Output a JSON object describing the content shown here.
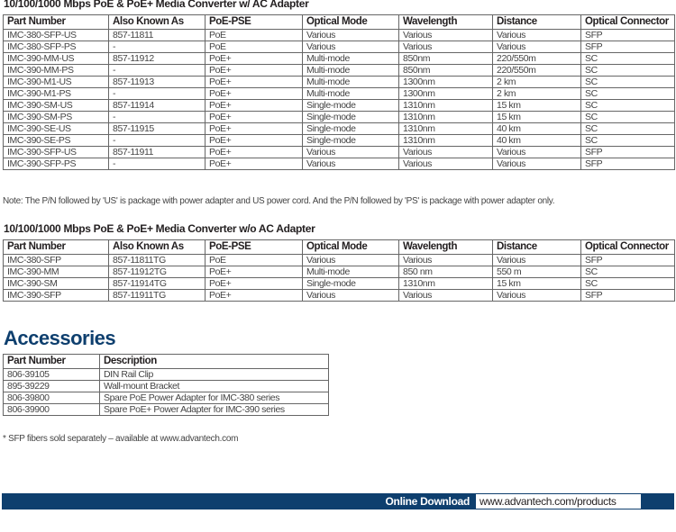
{
  "section1": {
    "title": "10/100/1000 Mbps PoE & PoE+ Media Converter w/ AC Adapter",
    "headers": [
      "Part Number",
      "Also Known As",
      "PoE-PSE",
      "Optical Mode",
      "Wavelength",
      "Distance",
      "Optical Connector"
    ],
    "rows": [
      [
        "IMC-380-SFP-US",
        "857-11811",
        "PoE",
        "Various",
        "Various",
        "Various",
        "SFP"
      ],
      [
        "IMC-380-SFP-PS",
        "-",
        "PoE",
        "Various",
        "Various",
        "Various",
        "SFP"
      ],
      [
        "IMC-390-MM-US",
        "857-11912",
        "PoE+",
        "Multi-mode",
        "850nm",
        "220/550m",
        "SC"
      ],
      [
        "IMC-390-MM-PS",
        "-",
        "PoE+",
        "Multi-mode",
        "850nm",
        "220/550m",
        "SC"
      ],
      [
        "IMC-390-M1-US",
        "857-11913",
        "PoE+",
        "Multi-mode",
        "1300nm",
        "2 km",
        "SC"
      ],
      [
        "IMC-390-M1-PS",
        "-",
        "PoE+",
        "Multi-mode",
        "1300nm",
        "2 km",
        "SC"
      ],
      [
        "IMC-390-SM-US",
        "857-11914",
        "PoE+",
        "Single-mode",
        "1310nm",
        "15 km",
        "SC"
      ],
      [
        "IMC-390-SM-PS",
        "-",
        "PoE+",
        "Single-mode",
        "1310nm",
        "15 km",
        "SC"
      ],
      [
        "IMC-390-SE-US",
        "857-11915",
        "PoE+",
        "Single-mode",
        "1310nm",
        "40 km",
        "SC"
      ],
      [
        "IMC-390-SE-PS",
        "-",
        "PoE+",
        "Single-mode",
        "1310nm",
        "40 km",
        "SC"
      ],
      [
        "IMC-390-SFP-US",
        "857-11911",
        "PoE+",
        "Various",
        "Various",
        "Various",
        "SFP"
      ],
      [
        "IMC-390-SFP-PS",
        "-",
        "PoE+",
        "Various",
        "Various",
        "Various",
        "SFP"
      ]
    ],
    "note": "Note: The P/N followed by 'US' is package with power adapter and US power cord. And the P/N followed by 'PS' is package with  power adapter only."
  },
  "section2": {
    "title": "10/100/1000 Mbps PoE & PoE+ Media Converter w/o AC Adapter",
    "headers": [
      "Part Number",
      "Also Known As",
      "PoE-PSE",
      "Optical Mode",
      "Wavelength",
      "Distance",
      "Optical Connector"
    ],
    "rows": [
      [
        "IMC-380-SFP",
        "857-11811TG",
        "PoE",
        "Various",
        "Various",
        "Various",
        "SFP"
      ],
      [
        "IMC-390-MM",
        "857-11912TG",
        "PoE+",
        "Multi-mode",
        "850 nm",
        "550 m",
        "SC"
      ],
      [
        "IMC-390-SM",
        "857-11914TG",
        "PoE+",
        "Single-mode",
        "1310nm",
        "15 km",
        "SC"
      ],
      [
        "IMC-390-SFP",
        "857-11911TG",
        "PoE+",
        "Various",
        "Various",
        "Various",
        "SFP"
      ]
    ]
  },
  "accessories": {
    "title": "Accessories",
    "headers": [
      "Part Number",
      "Description"
    ],
    "rows": [
      [
        "806-39105",
        "DIN Rail Clip"
      ],
      [
        "895-39229",
        "Wall-mount Bracket"
      ],
      [
        "806-39800",
        "Spare PoE Power Adapter for IMC-380 series"
      ],
      [
        "806-39900",
        "Spare PoE+ Power Adapter for IMC-390 series"
      ]
    ],
    "footnote": "* SFP fibers sold separately – available at www.advantech.com"
  },
  "footer": {
    "label": "Online Download",
    "url": "www.advantech.com/products"
  },
  "colors": {
    "brand": "#0e3f6e"
  }
}
